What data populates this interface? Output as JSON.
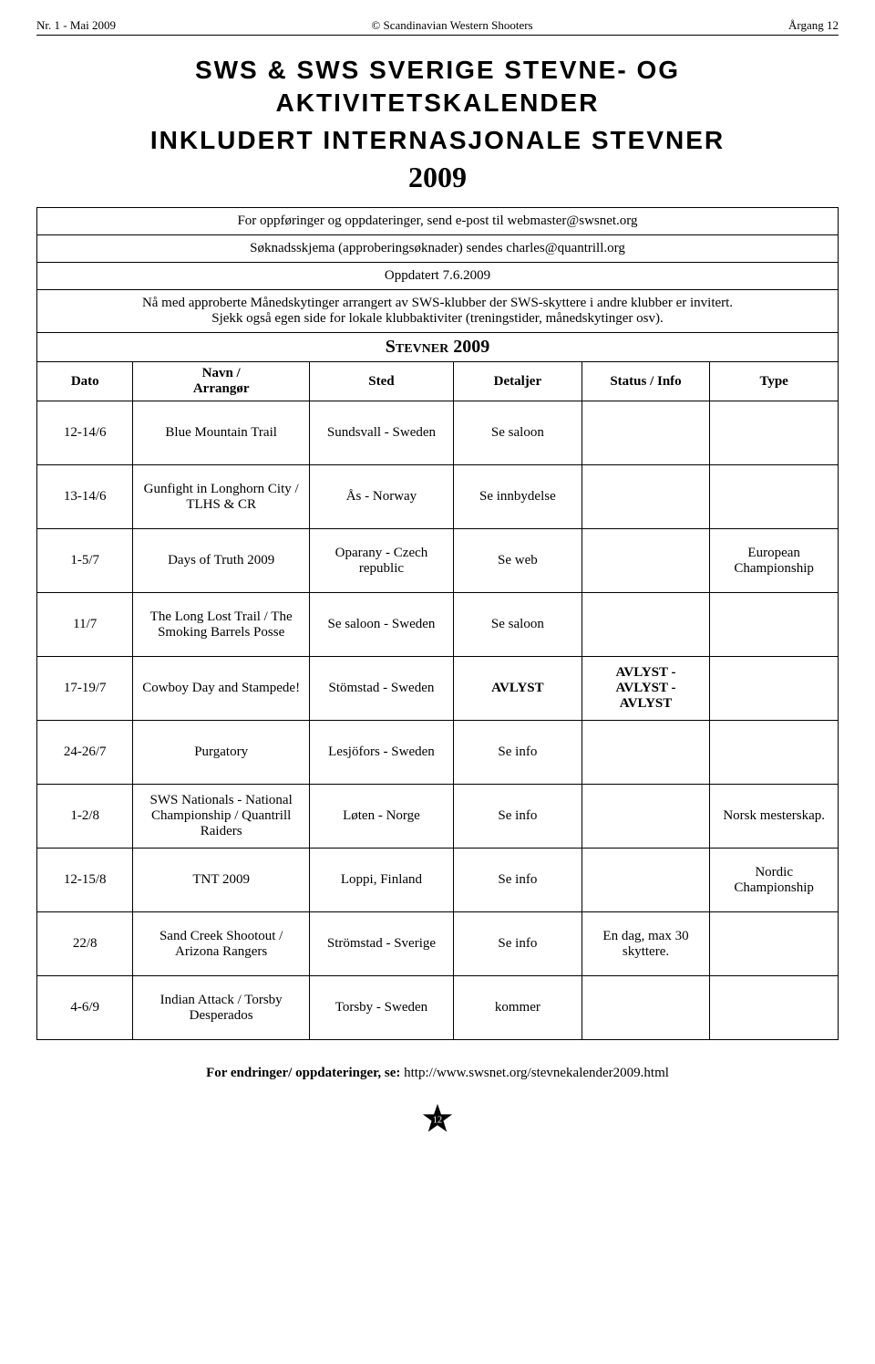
{
  "header": {
    "left": "Nr. 1 - Mai 2009",
    "center": "© Scandinavian Western Shooters",
    "right": "Årgang 12"
  },
  "title_line1": "SWS & SWS SVERIGE STEVNE- OG AKTIVITETSKALENDER",
  "title_line2": "INKLUDERT INTERNASJONALE STEVNER",
  "year": "2009",
  "intro": {
    "line1": "For oppføringer og oppdateringer, send e-post til webmaster@swsnet.org",
    "line2": "Søknadsskjema (approberingsøknader) sendes charles@quantrill.org",
    "line3": "Oppdatert 7.6.2009",
    "line4a": "Nå med approberte Månedskytinger arrangert av SWS-klubber der SWS-skyttere i andre klubber er invitert.",
    "line4b": "Sjekk også egen side for lokale klubbaktiviter (treningstider, månedskytinger osv)."
  },
  "section_header": "Stevner 2009",
  "columns": {
    "c1": "Dato",
    "c2a": "Navn /",
    "c2b": "Arrangør",
    "c3": "Sted",
    "c4": "Detaljer",
    "c5": "Status / Info",
    "c6": "Type"
  },
  "rows": [
    {
      "dato": "12-14/6",
      "navn": "Blue Mountain Trail",
      "sted": "Sundsvall - Sweden",
      "det": "Se saloon",
      "status": "",
      "type": ""
    },
    {
      "dato": "13-14/6",
      "navn": "Gunfight in Longhorn City / TLHS & CR",
      "sted": "Ås - Norway",
      "det": "Se innbydelse",
      "status": "",
      "type": ""
    },
    {
      "dato": "1-5/7",
      "navn": "Days of Truth 2009",
      "sted": "Oparany - Czech republic",
      "det": "Se web",
      "status": "",
      "type": "European Championship"
    },
    {
      "dato": "11/7",
      "navn": "The Long Lost Trail / The Smoking Barrels Posse",
      "sted": "Se saloon - Sweden",
      "det": "Se saloon",
      "status": "",
      "type": ""
    },
    {
      "dato": "17-19/7",
      "navn": "Cowboy Day and Stampede!",
      "sted": "Stömstad - Sweden",
      "det": "AVLYST",
      "status": "AVLYST - AVLYST - AVLYST",
      "type": ""
    },
    {
      "dato": "24-26/7",
      "navn": "Purgatory",
      "sted": "Lesjöfors - Sweden",
      "det": "Se info",
      "status": "",
      "type": ""
    },
    {
      "dato": "1-2/8",
      "navn": "SWS Nationals - National Championship / Quantrill Raiders",
      "sted": "Løten - Norge",
      "det": "Se info",
      "status": "",
      "type": "Norsk mesterskap."
    },
    {
      "dato": "12-15/8",
      "navn": "TNT 2009",
      "sted": "Loppi, Finland",
      "det": "Se info",
      "status": "",
      "type": "Nordic Championship"
    },
    {
      "dato": "22/8",
      "navn": "Sand Creek Shootout / Arizona Rangers",
      "sted": "Strömstad - Sverige",
      "det": "Se info",
      "status": "En dag, max 30 skyttere.",
      "type": ""
    },
    {
      "dato": "4-6/9",
      "navn": "Indian Attack / Torsby Desperados",
      "sted": "Torsby - Sweden",
      "det": "kommer",
      "status": "",
      "type": ""
    }
  ],
  "footer": {
    "bold": "For endringer/ oppdateringer, se:  ",
    "url": "http://www.swsnet.org/stevnekalender2009.html"
  },
  "page_number": "12",
  "style": {
    "col_widths": [
      "12%",
      "22%",
      "18%",
      "16%",
      "16%",
      "16%"
    ],
    "bold_detail_rows": [
      4
    ],
    "bold_status_rows": [
      4
    ]
  }
}
